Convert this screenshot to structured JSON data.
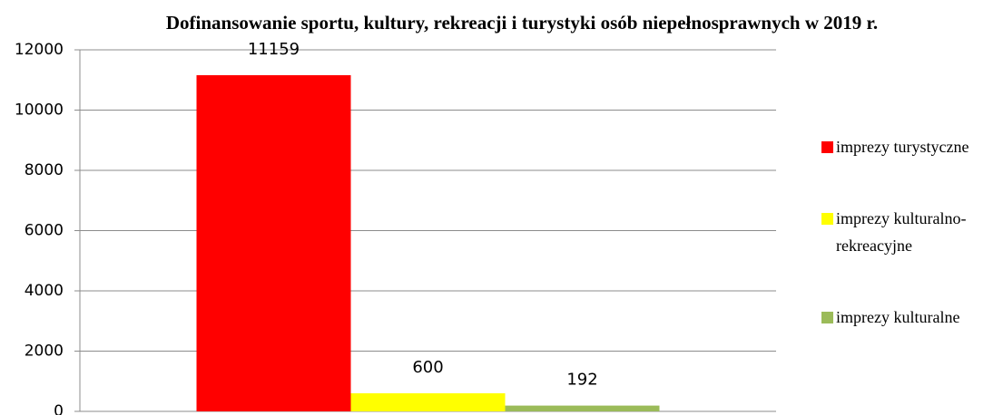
{
  "chart_data": {
    "type": "bar",
    "title": "Dofinansowanie sportu, kultury, rekreacji i turystyki osób niepełnosprawnych w 2019 r.",
    "categories": [
      null
    ],
    "series": [
      {
        "name": "imprezy turystyczne",
        "color": "#ff0000",
        "values": [
          11159
        ]
      },
      {
        "name": "imprezy kulturalno-rekreacyjne",
        "color": "#ffff00",
        "values": [
          600
        ]
      },
      {
        "name": "imprezy kulturalne",
        "color": "#9bbb59",
        "values": [
          192
        ]
      }
    ],
    "ylim": [
      0,
      12000
    ],
    "yticks": [
      0,
      2000,
      4000,
      6000,
      8000,
      10000,
      12000
    ],
    "grid": true,
    "legend": "right"
  }
}
